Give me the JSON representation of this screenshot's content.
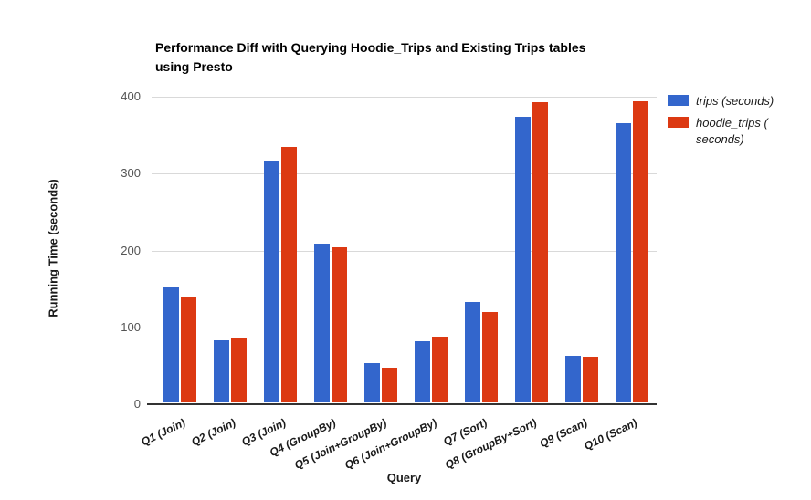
{
  "chart_data": {
    "type": "bar",
    "title": "Performance Diff with Querying Hoodie_Trips and Existing Trips tables using Presto",
    "title_lines": [
      "Performance Diff with Querying Hoodie_Trips and Existing Trips tables",
      "using Presto"
    ],
    "xlabel": "Query",
    "ylabel": "Running Time (seconds)",
    "ylim": [
      0,
      400
    ],
    "yticks": [
      0,
      100,
      200,
      300,
      400
    ],
    "grid": true,
    "legend_position": "right",
    "categories": [
      "Q1 (Join)",
      "Q2 (Join)",
      "Q3 (Join)",
      "Q4 (GroupBy)",
      "Q5 (Join+GroupBy)",
      "Q6 (Join+GroupBy)",
      "Q7 (Sort)",
      "Q8 (GroupBy+Sort)",
      "Q9 (Scan)",
      "Q10 (Scan)"
    ],
    "series": [
      {
        "name": "trips (seconds)",
        "color": "#3366cc",
        "values": [
          150,
          81,
          313,
          207,
          51,
          80,
          131,
          371,
          61,
          363
        ]
      },
      {
        "name": "hoodie_trips ( seconds)",
        "color": "#dc3912",
        "values": [
          138,
          84,
          332,
          202,
          45,
          85,
          117,
          390,
          59,
          392
        ]
      }
    ],
    "colors": {
      "trips": "#3366cc",
      "hoodie_trips": "#dc3912",
      "gridline": "#d9d9d9",
      "axis": "#333333"
    }
  }
}
